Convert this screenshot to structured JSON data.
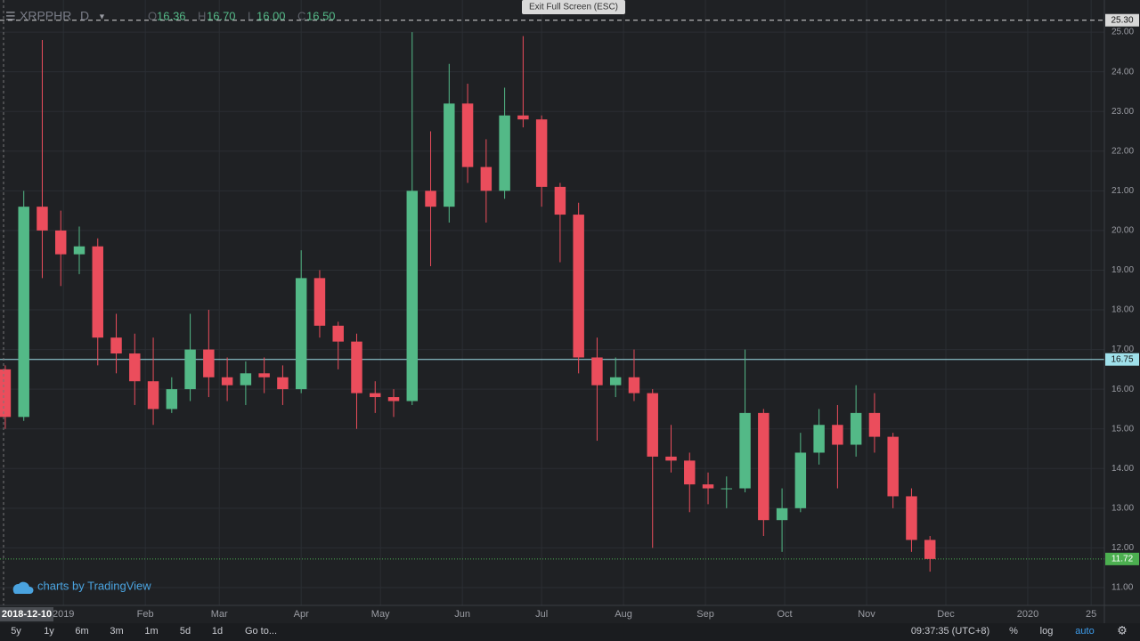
{
  "chart_data": {
    "type": "candlestick",
    "legend": {
      "symbol": "XRPPHR",
      "interval": "D",
      "items": [
        {
          "label": "O",
          "value": "16.36"
        },
        {
          "label": "H",
          "value": "16.70"
        },
        {
          "label": "L",
          "value": "16.00"
        },
        {
          "label": "C",
          "value": "16.50"
        }
      ]
    },
    "x": [
      "2018-12-10",
      "2018-12-17",
      "2018-12-24",
      "2018-12-31",
      "2019-01-07",
      "2019-01-14",
      "2019-01-21",
      "2019-01-28",
      "2019-02-04",
      "2019-02-11",
      "2019-02-18",
      "2019-02-25",
      "2019-03-04",
      "2019-03-11",
      "2019-03-18",
      "2019-03-25",
      "2019-04-01",
      "2019-04-08",
      "2019-04-15",
      "2019-04-22",
      "2019-04-29",
      "2019-05-06",
      "2019-05-13",
      "2019-05-20",
      "2019-05-27",
      "2019-06-03",
      "2019-06-10",
      "2019-06-17",
      "2019-06-24",
      "2019-07-01",
      "2019-07-08",
      "2019-07-15",
      "2019-07-22",
      "2019-07-29",
      "2019-08-05",
      "2019-08-12",
      "2019-08-19",
      "2019-08-26",
      "2019-09-02",
      "2019-09-09",
      "2019-09-16",
      "2019-09-23",
      "2019-09-30",
      "2019-10-07",
      "2019-10-14",
      "2019-10-21",
      "2019-10-28",
      "2019-11-04",
      "2019-11-11",
      "2019-11-18",
      "2019-11-25"
    ],
    "open": [
      16.5,
      15.3,
      20.6,
      20.0,
      19.4,
      19.6,
      17.3,
      16.9,
      16.2,
      15.5,
      16.0,
      17.0,
      16.3,
      16.1,
      16.4,
      16.3,
      16.0,
      18.8,
      17.6,
      17.2,
      15.9,
      15.8,
      15.7,
      21.0,
      20.6,
      23.2,
      21.6,
      21.0,
      22.9,
      22.8,
      21.1,
      20.4,
      16.8,
      16.1,
      16.3,
      15.9,
      14.3,
      14.2,
      13.6,
      13.5,
      13.5,
      15.4,
      12.7,
      13.0,
      14.4,
      15.1,
      14.6,
      15.4,
      14.8,
      13.3,
      12.2
    ],
    "high": [
      16.6,
      21.0,
      24.8,
      20.5,
      20.1,
      19.8,
      17.9,
      17.4,
      17.3,
      16.3,
      17.9,
      18.0,
      16.8,
      16.7,
      16.8,
      16.6,
      19.5,
      19.0,
      17.7,
      17.4,
      16.2,
      16.0,
      25.0,
      22.5,
      24.2,
      23.7,
      22.3,
      23.6,
      24.9,
      22.9,
      21.2,
      20.7,
      17.3,
      16.8,
      17.0,
      16.0,
      15.1,
      14.4,
      13.9,
      13.8,
      17.0,
      15.5,
      13.5,
      14.9,
      15.5,
      15.6,
      16.1,
      15.9,
      14.9,
      13.5,
      12.3
    ],
    "low": [
      15.0,
      15.2,
      18.8,
      18.6,
      18.9,
      16.6,
      16.4,
      15.6,
      15.1,
      15.4,
      15.7,
      15.8,
      15.7,
      15.6,
      15.9,
      15.6,
      15.9,
      17.3,
      16.5,
      15.0,
      15.4,
      15.3,
      15.6,
      19.1,
      20.2,
      21.2,
      20.2,
      20.8,
      22.6,
      20.6,
      19.2,
      16.4,
      14.7,
      15.8,
      15.7,
      12.0,
      13.9,
      12.9,
      13.1,
      13.0,
      13.4,
      12.3,
      11.9,
      12.9,
      14.1,
      13.5,
      14.3,
      14.4,
      13.0,
      11.9,
      11.4
    ],
    "close": [
      15.3,
      20.6,
      20.0,
      19.4,
      19.6,
      17.3,
      16.9,
      16.2,
      15.5,
      16.0,
      17.0,
      16.3,
      16.1,
      16.4,
      16.3,
      16.0,
      18.8,
      17.6,
      17.2,
      15.9,
      15.8,
      15.7,
      21.0,
      20.6,
      23.2,
      21.6,
      21.0,
      22.9,
      22.8,
      21.1,
      20.4,
      16.8,
      16.1,
      16.3,
      15.9,
      14.3,
      14.2,
      13.6,
      13.5,
      13.5,
      15.4,
      12.7,
      13.0,
      14.4,
      15.1,
      14.6,
      15.4,
      14.8,
      13.3,
      12.2,
      11.72
    ],
    "up_color": "#53b987",
    "down_color": "#eb4d5c",
    "xlim": [
      "2018-12-08",
      "2020-01-30"
    ],
    "xticks": [
      {
        "value": "2019-01-01",
        "label": "2019"
      },
      {
        "value": "2019-02-01",
        "label": "Feb"
      },
      {
        "value": "2019-03-01",
        "label": "Mar"
      },
      {
        "value": "2019-04-01",
        "label": "Apr"
      },
      {
        "value": "2019-05-01",
        "label": "May"
      },
      {
        "value": "2019-06-01",
        "label": "Jun"
      },
      {
        "value": "2019-07-01",
        "label": "Jul"
      },
      {
        "value": "2019-08-01",
        "label": "Aug"
      },
      {
        "value": "2019-09-01",
        "label": "Sep"
      },
      {
        "value": "2019-10-01",
        "label": "Oct"
      },
      {
        "value": "2019-11-01",
        "label": "Nov"
      },
      {
        "value": "2019-12-01",
        "label": "Dec"
      },
      {
        "value": "2020-01-01",
        "label": "2020"
      },
      {
        "value": "2020-01-25",
        "label": "25"
      }
    ],
    "ylim": [
      10.55,
      25.81
    ],
    "yticks": [
      {
        "value": 11,
        "label": "11.00"
      },
      {
        "value": 12,
        "label": "12.00"
      },
      {
        "value": 13,
        "label": "13.00"
      },
      {
        "value": 14,
        "label": "14.00"
      },
      {
        "value": 15,
        "label": "15.00"
      },
      {
        "value": 16,
        "label": "16.00"
      },
      {
        "value": 17,
        "label": "17.00"
      },
      {
        "value": 18,
        "label": "18.00"
      },
      {
        "value": 19,
        "label": "19.00"
      },
      {
        "value": 20,
        "label": "20.00"
      },
      {
        "value": 21,
        "label": "21.00"
      },
      {
        "value": 22,
        "label": "22.00"
      },
      {
        "value": 23,
        "label": "23.00"
      },
      {
        "value": 24,
        "label": "24.00"
      },
      {
        "value": 25,
        "label": "25.00"
      }
    ],
    "grid": true,
    "price_lines": [
      {
        "value": 25.3,
        "label": "25.30",
        "color": "#d8d8d8",
        "style": "dashed"
      },
      {
        "value": 16.75,
        "label": "16.75",
        "color": "#9fe0ea",
        "style": "solid"
      },
      {
        "value": 11.72,
        "label": "11.72",
        "color": "#4caf50",
        "style": "dotted"
      }
    ]
  },
  "ui": {
    "exit_button": "Exit Full Screen (ESC)",
    "watermark": "charts by TradingView",
    "ranges": [
      "5y",
      "1y",
      "6m",
      "3m",
      "1m",
      "5d",
      "1d",
      "Go to..."
    ],
    "clock": "09:37:35 (UTC+8)",
    "options": [
      "%",
      "log",
      "auto"
    ]
  }
}
